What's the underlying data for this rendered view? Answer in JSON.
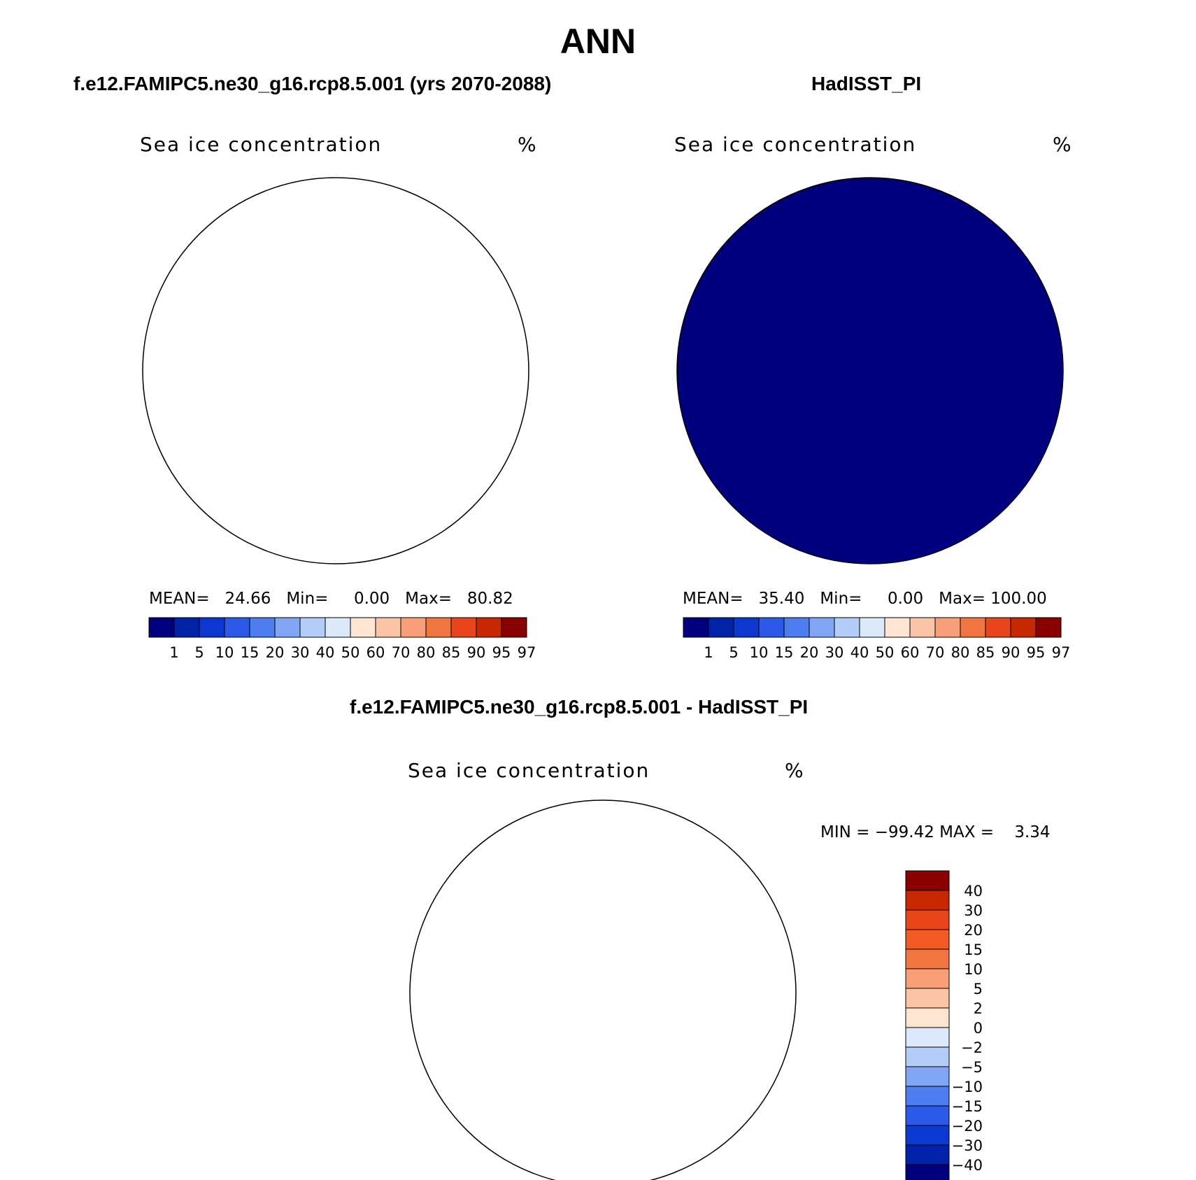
{
  "figure": {
    "title": "ANN"
  },
  "panels": [
    {
      "id": "model",
      "case_title": "f.e12.FAMIPC5.ne30_g16.rcp8.5.001 (yrs 2070-2088)",
      "variable": "Sea ice concentration",
      "units": "%",
      "stats": {
        "mean_label": "MEAN=",
        "mean": "24.66",
        "min_label": "Min=",
        "min": "0.00",
        "max_label": "Max=",
        "max": "80.82"
      }
    },
    {
      "id": "obs",
      "case_title": "HadISST_PI",
      "variable": "Sea ice concentration",
      "units": "%",
      "stats": {
        "mean_label": "MEAN=",
        "mean": "35.40",
        "min_label": "Min=",
        "min": "0.00",
        "max_label": "Max=",
        "max": "100.00"
      }
    },
    {
      "id": "diff",
      "case_title": "f.e12.FAMIPC5.ne30_g16.rcp8.5.001 - HadISST_PI",
      "variable": "Sea ice concentration",
      "units": "%",
      "stats_text": "MIN = −99.42 MAX =    3.34"
    }
  ],
  "colorbars": {
    "concentration": {
      "levels": [
        "1",
        "5",
        "10",
        "15",
        "20",
        "30",
        "40",
        "50",
        "60",
        "70",
        "80",
        "85",
        "90",
        "95",
        "97"
      ],
      "colors": [
        "#00007f",
        "#0022a8",
        "#0a38d0",
        "#2b5ae8",
        "#4d7df0",
        "#80a6f5",
        "#b4cdf8",
        "#dbe9fb",
        "#fde5d2",
        "#fcc4a6",
        "#f89f78",
        "#f1753f",
        "#e8461a",
        "#c82800",
        "#8b0000"
      ]
    },
    "difference": {
      "levels": [
        "40",
        "30",
        "20",
        "15",
        "10",
        "5",
        "2",
        "0",
        "−2",
        "−5",
        "−10",
        "−15",
        "−20",
        "−30",
        "−40"
      ],
      "colors": [
        "#8b0000",
        "#c82800",
        "#e8461a",
        "#f25c22",
        "#f1753f",
        "#f89f78",
        "#fcc4a6",
        "#fde5d2",
        "#dbe9fb",
        "#b4cdf8",
        "#80a6f5",
        "#4d7df0",
        "#2b5ae8",
        "#0a38d0",
        "#0022a8",
        "#00007f"
      ]
    }
  }
}
